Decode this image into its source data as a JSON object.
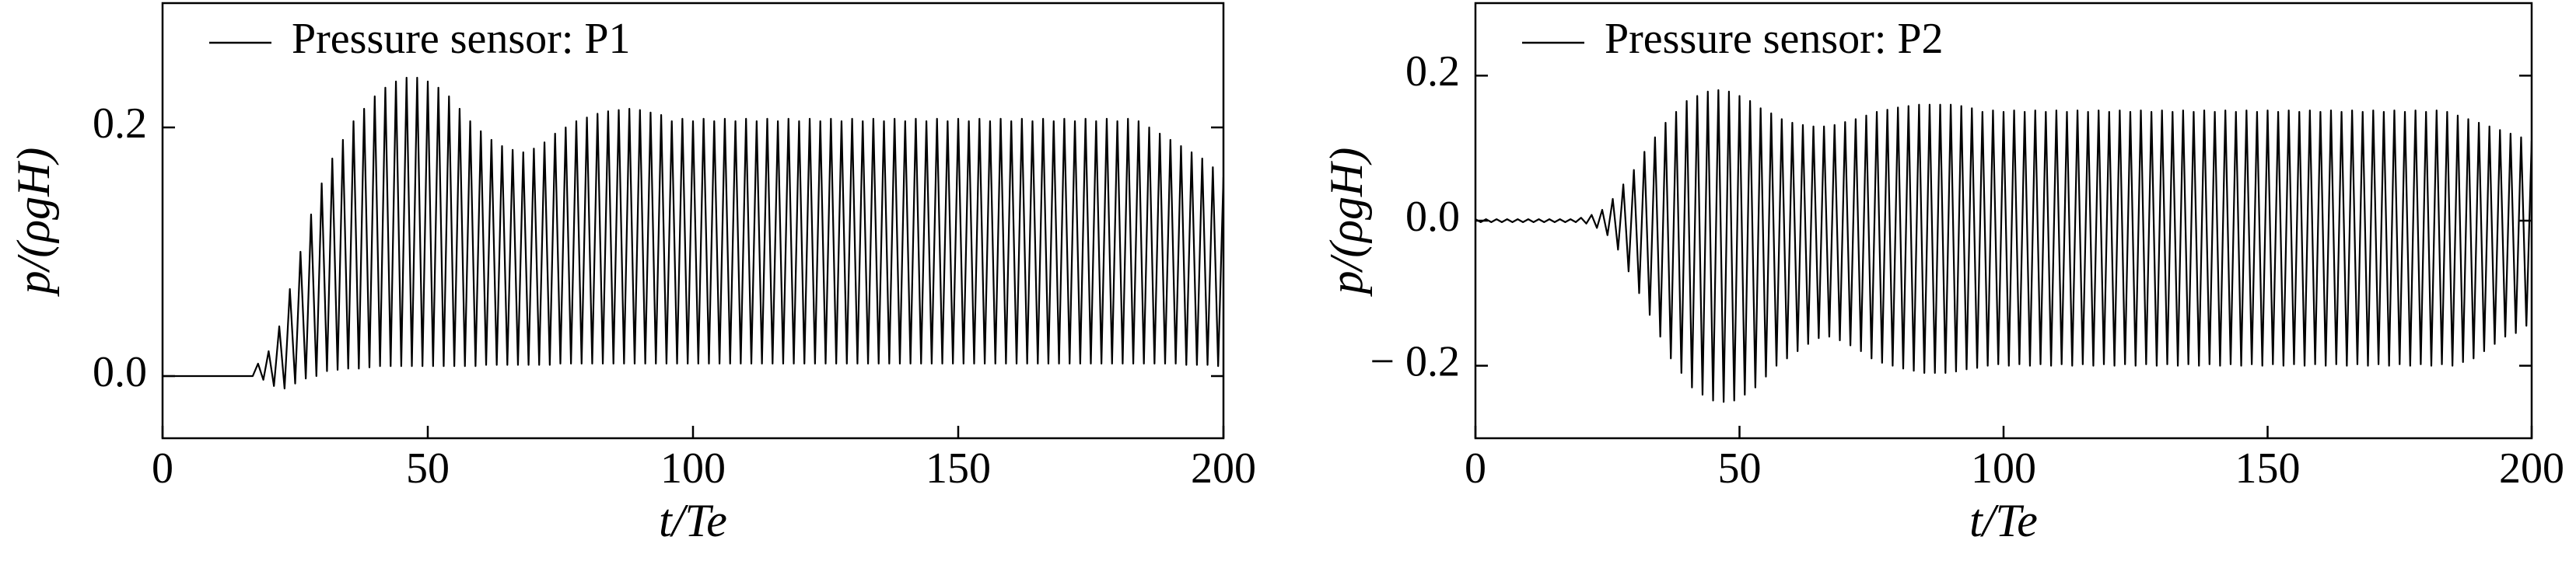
{
  "chart_data": [
    {
      "type": "line",
      "xlabel": "t/Te",
      "ylabel": "p/(ρgH)",
      "xlim": [
        0,
        200
      ],
      "xticks": [
        0,
        50,
        100,
        150,
        200
      ],
      "ylim": [
        -0.05,
        0.3
      ],
      "yticks": [
        {
          "value": 0,
          "label": "0.0"
        },
        0.2
      ],
      "legend": "upper left",
      "x": [
        0,
        1,
        2,
        3,
        4,
        5,
        6,
        7,
        8,
        9,
        10,
        11,
        12,
        13,
        14,
        15,
        16,
        17,
        18,
        19,
        20,
        21,
        22,
        23,
        24,
        25,
        26,
        27,
        28,
        29,
        30,
        31,
        32,
        33,
        34,
        35,
        36,
        37,
        38,
        39,
        40,
        41,
        42,
        43,
        44,
        45,
        46,
        47,
        48,
        49,
        50,
        51,
        52,
        53,
        54,
        55,
        56,
        57,
        58,
        59,
        60,
        61,
        62,
        63,
        64,
        65,
        66,
        67,
        68,
        69,
        70,
        71,
        72,
        73,
        74,
        75,
        76,
        77,
        78,
        79,
        80,
        81,
        82,
        83,
        84,
        85,
        86,
        87,
        88,
        89,
        90,
        91,
        92,
        93,
        94,
        95,
        96,
        97,
        98,
        99,
        100,
        101,
        102,
        103,
        104,
        105,
        106,
        107,
        108,
        109,
        110,
        111,
        112,
        113,
        114,
        115,
        116,
        117,
        118,
        119,
        120,
        121,
        122,
        123,
        124,
        125,
        126,
        127,
        128,
        129,
        130,
        131,
        132,
        133,
        134,
        135,
        136,
        137,
        138,
        139,
        140,
        141,
        142,
        143,
        144,
        145,
        146,
        147,
        148,
        149,
        150,
        151,
        152,
        153,
        154,
        155,
        156,
        157,
        158,
        159,
        160,
        161,
        162,
        163,
        164,
        165,
        166,
        167,
        168,
        169,
        170,
        171,
        172,
        173,
        174,
        175,
        176,
        177,
        178,
        179,
        180,
        181,
        182,
        183,
        184,
        185,
        186,
        187,
        188,
        189,
        190,
        191,
        192,
        193,
        194,
        195,
        196,
        197,
        198,
        199,
        200
      ],
      "series": [
        {
          "name": "Pressure sensor: P1",
          "color": "#000000",
          "values": [
            0,
            0,
            0,
            0,
            0,
            0,
            0,
            0,
            0,
            0,
            0,
            0,
            0,
            0,
            0,
            0,
            0,
            0,
            0.01,
            -0.003,
            0.02,
            -0.008,
            0.04,
            -0.01,
            0.07,
            -0.006,
            0.1,
            -0.002,
            0.13,
            0.0,
            0.155,
            0.004,
            0.175,
            0.005,
            0.19,
            0.006,
            0.205,
            0.006,
            0.215,
            0.007,
            0.225,
            0.008,
            0.232,
            0.008,
            0.237,
            0.008,
            0.24,
            0.008,
            0.24,
            0.008,
            0.237,
            0.008,
            0.232,
            0.008,
            0.225,
            0.008,
            0.215,
            0.008,
            0.205,
            0.008,
            0.197,
            0.009,
            0.19,
            0.009,
            0.185,
            0.009,
            0.182,
            0.009,
            0.18,
            0.009,
            0.183,
            0.009,
            0.188,
            0.009,
            0.195,
            0.01,
            0.2,
            0.01,
            0.205,
            0.01,
            0.208,
            0.01,
            0.211,
            0.01,
            0.213,
            0.01,
            0.214,
            0.01,
            0.215,
            0.01,
            0.214,
            0.01,
            0.212,
            0.01,
            0.21,
            0.01,
            0.205,
            0.01,
            0.207,
            0.01,
            0.205,
            0.01,
            0.207,
            0.01,
            0.205,
            0.01,
            0.207,
            0.01,
            0.205,
            0.01,
            0.207,
            0.01,
            0.205,
            0.01,
            0.207,
            0.01,
            0.205,
            0.01,
            0.207,
            0.01,
            0.205,
            0.01,
            0.207,
            0.01,
            0.205,
            0.01,
            0.207,
            0.01,
            0.205,
            0.01,
            0.207,
            0.01,
            0.205,
            0.01,
            0.207,
            0.01,
            0.205,
            0.01,
            0.207,
            0.01,
            0.205,
            0.01,
            0.207,
            0.01,
            0.205,
            0.01,
            0.207,
            0.01,
            0.205,
            0.01,
            0.207,
            0.01,
            0.205,
            0.01,
            0.207,
            0.01,
            0.205,
            0.01,
            0.207,
            0.01,
            0.205,
            0.01,
            0.207,
            0.01,
            0.205,
            0.01,
            0.207,
            0.01,
            0.205,
            0.01,
            0.207,
            0.01,
            0.205,
            0.01,
            0.207,
            0.01,
            0.205,
            0.01,
            0.207,
            0.01,
            0.205,
            0.01,
            0.207,
            0.01,
            0.205,
            0.01,
            0.2,
            0.01,
            0.195,
            0.01,
            0.19,
            0.01,
            0.185,
            0.009,
            0.18,
            0.009,
            0.175,
            0.009,
            0.168,
            0.008,
            0.16
          ]
        }
      ]
    },
    {
      "type": "line",
      "xlabel": "t/Te",
      "ylabel": "p/(ρgH)",
      "xlim": [
        0,
        200
      ],
      "xticks": [
        0,
        50,
        100,
        150,
        200
      ],
      "ylim": [
        -0.3,
        0.3
      ],
      "yticks": [
        {
          "value": -0.2,
          "label": "− 0.2"
        },
        {
          "value": 0,
          "label": "0.0"
        },
        0.2
      ],
      "legend": "upper left",
      "x": [
        0,
        1,
        2,
        3,
        4,
        5,
        6,
        7,
        8,
        9,
        10,
        11,
        12,
        13,
        14,
        15,
        16,
        17,
        18,
        19,
        20,
        21,
        22,
        23,
        24,
        25,
        26,
        27,
        28,
        29,
        30,
        31,
        32,
        33,
        34,
        35,
        36,
        37,
        38,
        39,
        40,
        41,
        42,
        43,
        44,
        45,
        46,
        47,
        48,
        49,
        50,
        51,
        52,
        53,
        54,
        55,
        56,
        57,
        58,
        59,
        60,
        61,
        62,
        63,
        64,
        65,
        66,
        67,
        68,
        69,
        70,
        71,
        72,
        73,
        74,
        75,
        76,
        77,
        78,
        79,
        80,
        81,
        82,
        83,
        84,
        85,
        86,
        87,
        88,
        89,
        90,
        91,
        92,
        93,
        94,
        95,
        96,
        97,
        98,
        99,
        100,
        101,
        102,
        103,
        104,
        105,
        106,
        107,
        108,
        109,
        110,
        111,
        112,
        113,
        114,
        115,
        116,
        117,
        118,
        119,
        120,
        121,
        122,
        123,
        124,
        125,
        126,
        127,
        128,
        129,
        130,
        131,
        132,
        133,
        134,
        135,
        136,
        137,
        138,
        139,
        140,
        141,
        142,
        143,
        144,
        145,
        146,
        147,
        148,
        149,
        150,
        151,
        152,
        153,
        154,
        155,
        156,
        157,
        158,
        159,
        160,
        161,
        162,
        163,
        164,
        165,
        166,
        167,
        168,
        169,
        170,
        171,
        172,
        173,
        174,
        175,
        176,
        177,
        178,
        179,
        180,
        181,
        182,
        183,
        184,
        185,
        186,
        187,
        188,
        189,
        190,
        191,
        192,
        193,
        194,
        195,
        196,
        197,
        198,
        199,
        200
      ],
      "series": [
        {
          "name": "Pressure sensor: P2",
          "color": "#000000",
          "values": [
            0.002,
            -0.002,
            0.002,
            -0.002,
            0.002,
            -0.002,
            0.002,
            -0.002,
            0.002,
            -0.002,
            0.002,
            -0.002,
            0.002,
            -0.002,
            0.002,
            -0.002,
            0.002,
            -0.002,
            0.002,
            -0.002,
            0.004,
            -0.004,
            0.008,
            -0.01,
            0.015,
            -0.02,
            0.03,
            -0.04,
            0.05,
            -0.07,
            0.07,
            -0.1,
            0.095,
            -0.13,
            0.115,
            -0.16,
            0.135,
            -0.19,
            0.15,
            -0.21,
            0.165,
            -0.23,
            0.172,
            -0.24,
            0.178,
            -0.248,
            0.18,
            -0.25,
            0.178,
            -0.248,
            0.172,
            -0.24,
            0.165,
            -0.23,
            0.155,
            -0.215,
            0.148,
            -0.2,
            0.14,
            -0.19,
            0.135,
            -0.18,
            0.132,
            -0.17,
            0.13,
            -0.162,
            0.13,
            -0.16,
            0.132,
            -0.165,
            0.136,
            -0.172,
            0.14,
            -0.18,
            0.145,
            -0.19,
            0.15,
            -0.196,
            0.153,
            -0.2,
            0.156,
            -0.204,
            0.158,
            -0.207,
            0.16,
            -0.21,
            0.16,
            -0.21,
            0.16,
            -0.21,
            0.16,
            -0.208,
            0.158,
            -0.205,
            0.155,
            -0.203,
            0.15,
            -0.2,
            0.152,
            -0.198,
            0.15,
            -0.2,
            0.152,
            -0.198,
            0.15,
            -0.2,
            0.152,
            -0.198,
            0.15,
            -0.2,
            0.152,
            -0.198,
            0.15,
            -0.2,
            0.152,
            -0.198,
            0.15,
            -0.2,
            0.152,
            -0.198,
            0.15,
            -0.2,
            0.152,
            -0.198,
            0.15,
            -0.2,
            0.152,
            -0.198,
            0.15,
            -0.2,
            0.152,
            -0.198,
            0.15,
            -0.2,
            0.152,
            -0.198,
            0.15,
            -0.2,
            0.152,
            -0.198,
            0.15,
            -0.2,
            0.152,
            -0.198,
            0.15,
            -0.2,
            0.152,
            -0.198,
            0.15,
            -0.2,
            0.152,
            -0.198,
            0.15,
            -0.2,
            0.152,
            -0.198,
            0.15,
            -0.2,
            0.152,
            -0.198,
            0.15,
            -0.2,
            0.152,
            -0.198,
            0.15,
            -0.2,
            0.152,
            -0.198,
            0.15,
            -0.2,
            0.152,
            -0.198,
            0.15,
            -0.2,
            0.152,
            -0.198,
            0.15,
            -0.2,
            0.152,
            -0.198,
            0.15,
            -0.2,
            0.152,
            -0.198,
            0.15,
            -0.2,
            0.145,
            -0.195,
            0.14,
            -0.19,
            0.135,
            -0.18,
            0.13,
            -0.17,
            0.125,
            -0.16,
            0.12,
            -0.155,
            0.115,
            -0.145,
            0.11
          ]
        }
      ]
    }
  ]
}
